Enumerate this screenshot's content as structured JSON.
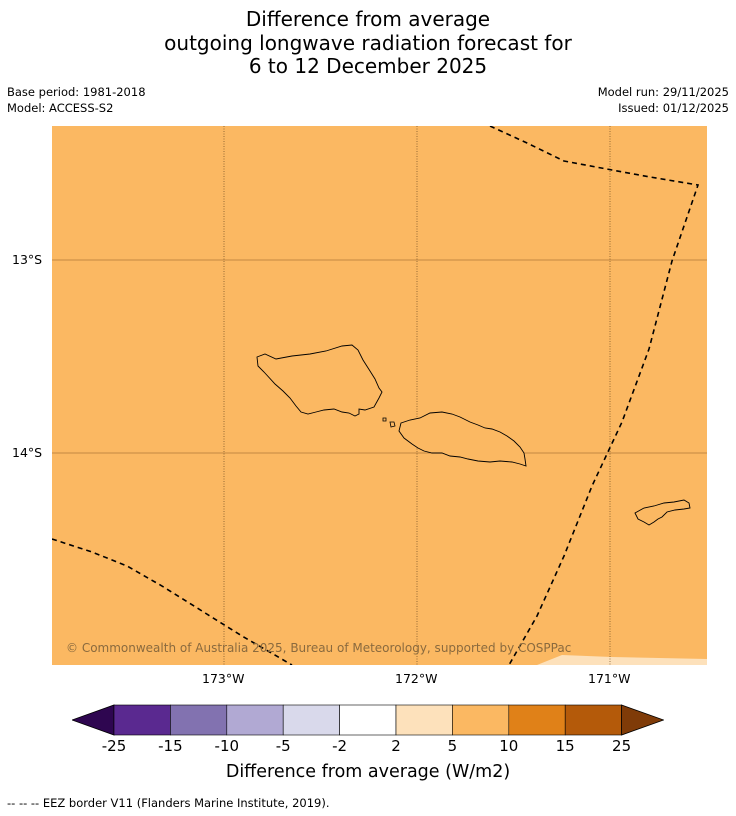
{
  "title": {
    "line1": "Difference from average",
    "line2": "outgoing longwave radiation forecast for",
    "line3": "6 to 12 December 2025"
  },
  "meta": {
    "base_period": "Base period: 1981-2018",
    "model": "Model: ACCESS-S2",
    "model_run": "Model run: 29/11/2025",
    "issued": "Issued: 01/12/2025"
  },
  "map": {
    "lat_labels": [
      "13°S",
      "14°S"
    ],
    "lon_labels": [
      "173°W",
      "172°W",
      "171°W"
    ],
    "copyright": "© Commonwealth of Australia 2025, Bureau of Meteorology, supported by COSPPac",
    "field_color": "#fbb862",
    "light_band_color": "#fde1bb"
  },
  "colorbar": {
    "ticks": [
      "-25",
      "-15",
      "-10",
      "-5",
      "-2",
      "2",
      "5",
      "10",
      "15",
      "25"
    ],
    "colors": [
      "#5a2990",
      "#8272b0",
      "#b1a9d3",
      "#d9d9eb",
      "#ffffff",
      "#fde1bb",
      "#fbb862",
      "#e08118",
      "#b45a0a"
    ],
    "low_extend_color": "#2e0650",
    "high_extend_color": "#7f3b08",
    "label": "Difference from average (W/m2)"
  },
  "footnote": "--  --  -- EEZ border V11 (Flanders Marine Institute, 2019)."
}
